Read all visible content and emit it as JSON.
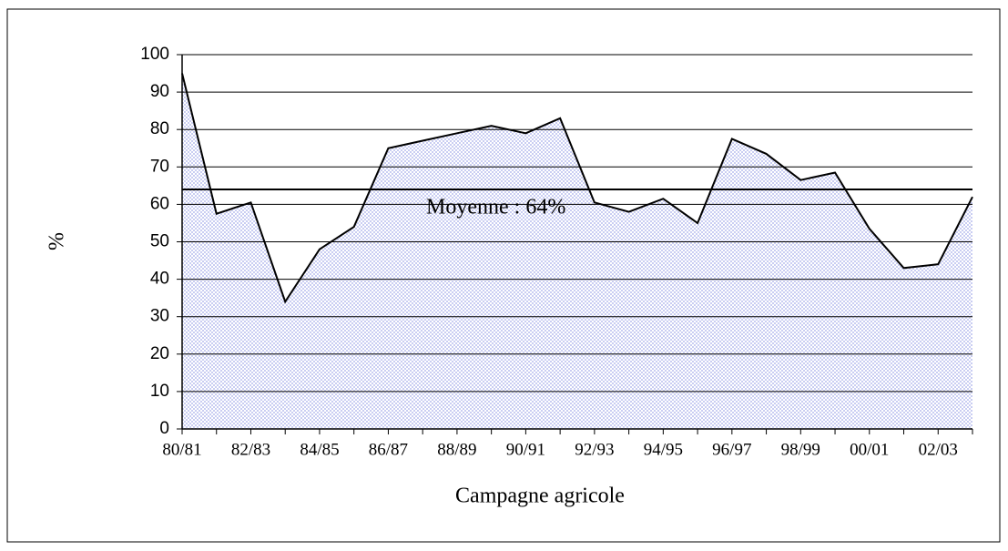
{
  "chart_data": {
    "type": "area",
    "x_label": "Campagne agricole",
    "y_label": "%",
    "categories": [
      "80/81",
      null,
      "82/83",
      null,
      "84/85",
      null,
      "86/87",
      null,
      "88/89",
      null,
      "90/91",
      null,
      "92/93",
      null,
      "94/95",
      null,
      "96/97",
      null,
      "98/99",
      null,
      "00/01",
      null,
      "02/03",
      null
    ],
    "values": [
      95,
      57.5,
      60.5,
      34,
      48,
      54,
      75,
      77,
      79,
      81,
      79,
      83,
      60.5,
      58,
      61.5,
      55,
      77.5,
      73.5,
      66.5,
      68.5,
      53.5,
      43,
      44,
      62
    ],
    "color": "#c9cdf2",
    "mean_line": 64,
    "annotation": "Moyenne : 64%",
    "ylim": [
      0,
      100
    ],
    "yticks": [
      0,
      10,
      20,
      30,
      40,
      50,
      60,
      70,
      80,
      90,
      100
    ],
    "grid": true
  }
}
